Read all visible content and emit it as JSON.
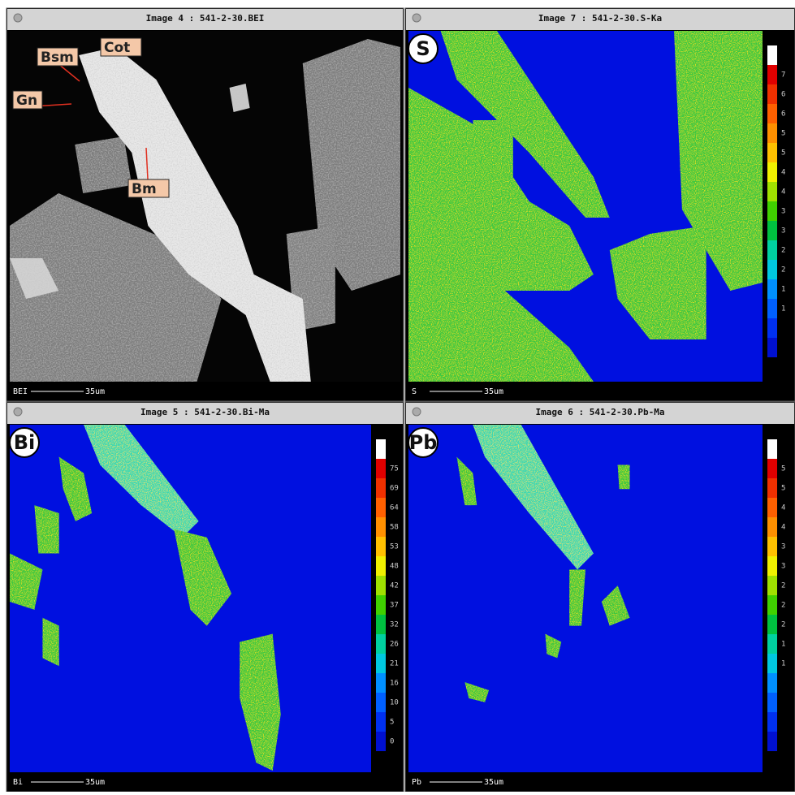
{
  "panels": [
    {
      "title": "Image 4 : 541-2-30.BEI",
      "status": "BEI",
      "scale": "35um",
      "labels": [
        "Bsm",
        "Cot",
        "Gn",
        "Bm"
      ]
    },
    {
      "title": "Image 7 : 541-2-30.S-Ka",
      "status": "S",
      "scale": "35um",
      "element": "S",
      "colorbar": [
        7,
        6,
        6,
        5,
        5,
        4,
        4,
        3,
        3,
        2,
        2,
        1,
        1
      ]
    },
    {
      "title": "Image 5 : 541-2-30.Bi-Ma",
      "status": "Bi",
      "scale": "35um",
      "element": "Bi",
      "colorbar": [
        75,
        69,
        64,
        58,
        53,
        48,
        42,
        37,
        32,
        26,
        21,
        16,
        10,
        5,
        0
      ]
    },
    {
      "title": "Image 6 : 541-2-30.Pb-Ma",
      "status": "Pb",
      "scale": "35um",
      "element": "Pb",
      "colorbar": [
        5,
        5,
        4,
        4,
        3,
        3,
        2,
        2,
        2,
        1,
        1
      ]
    }
  ]
}
